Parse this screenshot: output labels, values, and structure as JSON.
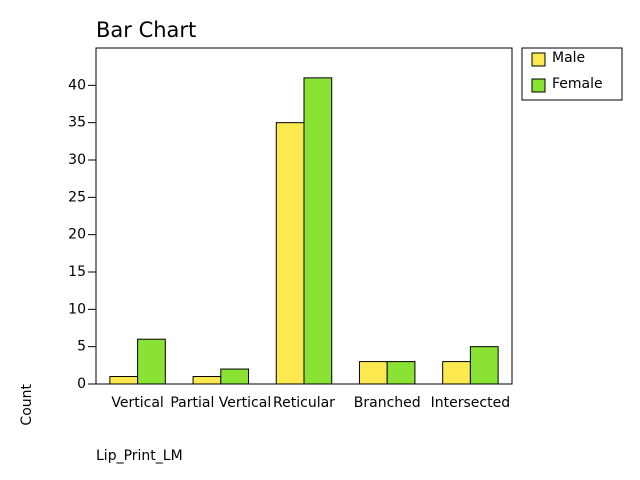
{
  "chart_data": {
    "type": "bar",
    "title": "Bar Chart",
    "x_label": "Lip_Print_LM",
    "y_label": "Count",
    "categories": [
      "Vertical",
      "Partial Vertical",
      "Reticular",
      "Branched",
      "Intersected"
    ],
    "series": [
      {
        "name": "Male",
        "color": "#fce94f",
        "values": [
          1,
          1,
          35,
          3,
          3
        ]
      },
      {
        "name": "Female",
        "color": "#8ae234",
        "values": [
          6,
          2,
          41,
          3,
          5
        ]
      }
    ],
    "ylim": [
      0,
      45
    ],
    "yticks": [
      0,
      5,
      10,
      15,
      20,
      25,
      30,
      35,
      40
    ],
    "legend": "outside-top-right"
  }
}
